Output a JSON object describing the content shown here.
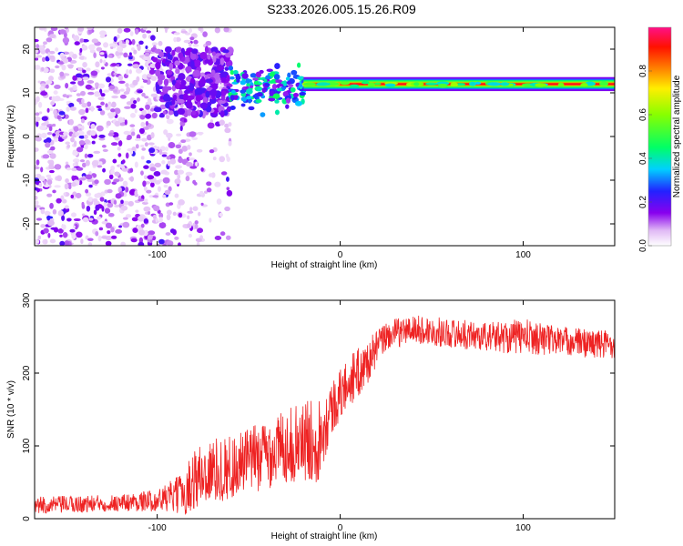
{
  "title": "S233.2026.005.15.26.R09",
  "chart_data": [
    {
      "type": "heatmap",
      "xlabel": "Height of straight line (km)",
      "ylabel": "Frequency (Hz)",
      "xlim": [
        -167,
        150
      ],
      "ylim": [
        -25,
        25
      ],
      "x_ticks": [
        "-100",
        "0",
        "100"
      ],
      "x_tick_values": [
        -100,
        0,
        100
      ],
      "y_ticks": [
        "20",
        "10",
        "0",
        "-10",
        "-20"
      ],
      "y_tick_values": [
        20,
        10,
        0,
        -10,
        -20
      ],
      "colorbar": {
        "label": "Normalized spectral amplitude",
        "ticks": [
          "0.0",
          "0.2",
          "0.4",
          "0.6",
          "0.8"
        ],
        "tick_values": [
          0.0,
          0.2,
          0.4,
          0.6,
          0.8
        ],
        "range": [
          0,
          1
        ]
      },
      "features": [
        {
          "name": "noise region",
          "x_range": [
            -167,
            -60
          ],
          "freq_range": [
            -25,
            25
          ],
          "amplitude": 0.1
        },
        {
          "name": "transition cluster",
          "x_range": [
            -100,
            -60
          ],
          "freq_range": [
            5,
            20
          ],
          "amplitude": 0.15
        },
        {
          "name": "emerging tone",
          "x_range": [
            -60,
            -20
          ],
          "freq_center": 11,
          "amplitude": 0.4
        },
        {
          "name": "steady tone",
          "x_range": [
            -20,
            150
          ],
          "freq_center": 12,
          "amplitude": 0.95
        }
      ]
    },
    {
      "type": "line",
      "xlabel": "Height of straight line (km)",
      "ylabel": "SNR (10 * v/v)",
      "xlim": [
        -167,
        150
      ],
      "ylim": [
        0,
        300
      ],
      "x_ticks": [
        "-100",
        "0",
        "100"
      ],
      "x_tick_values": [
        -100,
        0,
        100
      ],
      "y_ticks": [
        "0",
        "100",
        "200",
        "300"
      ],
      "y_tick_values": [
        0,
        100,
        200,
        300
      ],
      "color": "#ee2222",
      "series": [
        {
          "name": "SNR",
          "x": [
            -167,
            -140,
            -120,
            -100,
            -85,
            -80,
            -70,
            -60,
            -50,
            -40,
            -30,
            -20,
            -12,
            -10,
            -5,
            0,
            5,
            10,
            15,
            20,
            25,
            30,
            40,
            60,
            80,
            100,
            120,
            140,
            150
          ],
          "y": [
            18,
            20,
            22,
            25,
            35,
            55,
            65,
            70,
            80,
            90,
            100,
            105,
            110,
            120,
            150,
            170,
            190,
            200,
            215,
            235,
            250,
            255,
            260,
            255,
            250,
            250,
            245,
            240,
            240
          ],
          "spread": [
            12,
            12,
            12,
            15,
            30,
            45,
            45,
            45,
            45,
            50,
            50,
            55,
            60,
            50,
            40,
            35,
            35,
            35,
            30,
            25,
            20,
            20,
            20,
            20,
            20,
            25,
            20,
            20,
            20
          ]
        }
      ]
    }
  ]
}
